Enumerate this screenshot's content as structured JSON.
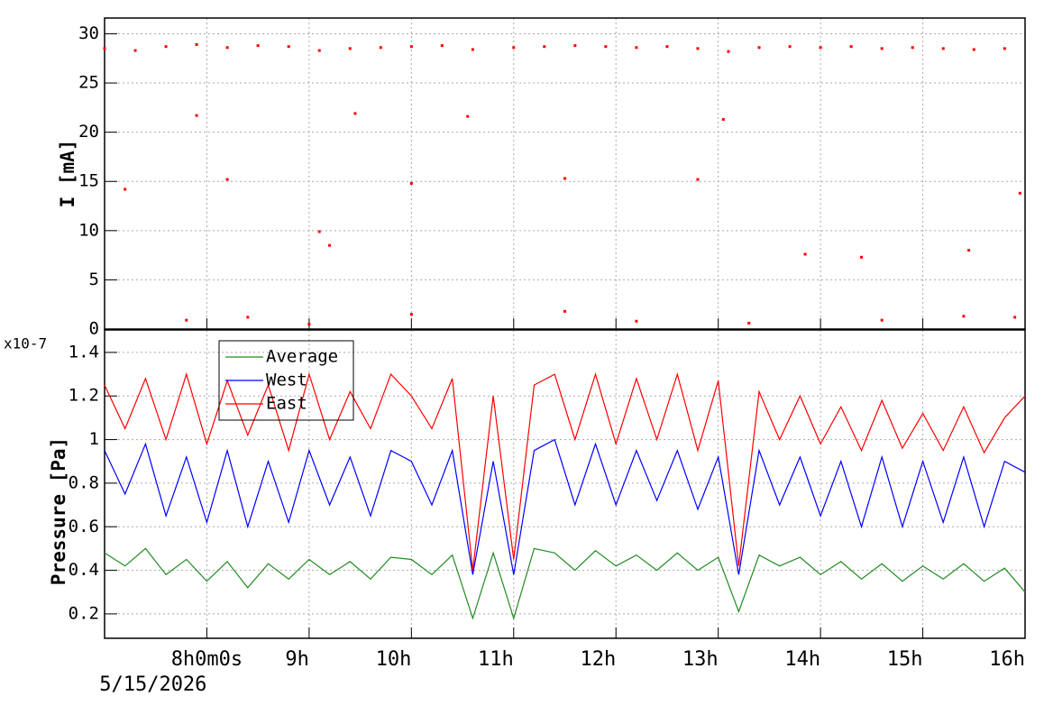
{
  "chart_data": [
    {
      "type": "scatter",
      "y_label": "I [mA]",
      "color": "#ff0000",
      "xlim": [
        7,
        16
      ],
      "xticks": [
        8,
        9,
        10,
        11,
        12,
        13,
        14,
        15,
        16
      ],
      "ylim": [
        0,
        31.6
      ],
      "yticks": [
        0,
        5,
        10,
        15,
        20,
        25,
        30
      ],
      "grid": true,
      "x": [
        7.0,
        7.3,
        7.6,
        7.9,
        8.2,
        8.5,
        8.8,
        9.1,
        9.4,
        9.7,
        10.0,
        10.3,
        10.6,
        11.0,
        11.3,
        11.6,
        11.9,
        12.2,
        12.5,
        12.8,
        13.1,
        13.4,
        13.7,
        14.0,
        14.3,
        14.6,
        14.9,
        15.2,
        15.5,
        15.8,
        7.2,
        7.9,
        8.2,
        9.1,
        9.2,
        9.45,
        10.0,
        10.55,
        11.5,
        12.8,
        13.05,
        13.85,
        14.4,
        15.45,
        15.95,
        7.8,
        8.4,
        9.0,
        10.0,
        11.5,
        12.2,
        13.3,
        14.6,
        15.4,
        15.9
      ],
      "values": [
        28.5,
        28.3,
        28.7,
        28.9,
        28.6,
        28.8,
        28.7,
        28.3,
        28.5,
        28.6,
        28.7,
        28.8,
        28.4,
        28.6,
        28.7,
        28.8,
        28.7,
        28.6,
        28.7,
        28.5,
        28.2,
        28.6,
        28.7,
        28.6,
        28.7,
        28.5,
        28.6,
        28.5,
        28.4,
        28.5,
        14.2,
        21.7,
        15.2,
        9.9,
        8.5,
        21.9,
        14.8,
        21.6,
        15.3,
        15.2,
        21.3,
        7.6,
        7.3,
        8,
        13.8,
        0.9,
        1.2,
        0.5,
        1.5,
        1.8,
        0.8,
        0.6,
        0.9,
        1.3,
        1.2
      ]
    },
    {
      "type": "line",
      "y_label": "Pressure [Pa]",
      "y_multiplier": "x10-7",
      "x_date_label": "5/15/2026",
      "xlim": [
        7,
        16
      ],
      "xticks": [
        {
          "value": 8,
          "label": "8h0m0s"
        },
        {
          "value": 9,
          "label": "9h"
        },
        {
          "value": 10,
          "label": "10h"
        },
        {
          "value": 11,
          "label": "11h"
        },
        {
          "value": 12,
          "label": "12h"
        },
        {
          "value": 13,
          "label": "13h"
        },
        {
          "value": 14,
          "label": "14h"
        },
        {
          "value": 15,
          "label": "15h"
        },
        {
          "value": 16,
          "label": "16h"
        }
      ],
      "ylim": [
        0.088,
        1.503
      ],
      "yticks": [
        0.2,
        0.4,
        0.6,
        0.8,
        {
          "value": 1,
          "label": "1"
        },
        1.2,
        1.4
      ],
      "grid": true,
      "x": [
        7.0,
        7.2,
        7.4,
        7.6,
        7.8,
        8.0,
        8.2,
        8.4,
        8.6,
        8.8,
        9.0,
        9.2,
        9.4,
        9.6,
        9.8,
        10.0,
        10.2,
        10.4,
        10.6,
        10.8,
        11.0,
        11.2,
        11.4,
        11.6,
        11.8,
        12.0,
        12.2,
        12.4,
        12.6,
        12.8,
        13.0,
        13.2,
        13.4,
        13.6,
        13.8,
        14.0,
        14.2,
        14.4,
        14.6,
        14.8,
        15.0,
        15.2,
        15.4,
        15.6,
        15.8,
        16.0
      ],
      "series": [
        {
          "name": "Average",
          "color": "#228b22",
          "values": [
            0.48,
            0.42,
            0.5,
            0.38,
            0.45,
            0.35,
            0.44,
            0.32,
            0.43,
            0.36,
            0.45,
            0.38,
            0.44,
            0.36,
            0.46,
            0.45,
            0.38,
            0.47,
            0.18,
            0.48,
            0.18,
            0.5,
            0.48,
            0.4,
            0.49,
            0.42,
            0.47,
            0.4,
            0.48,
            0.4,
            0.46,
            0.21,
            0.47,
            0.42,
            0.46,
            0.38,
            0.44,
            0.36,
            0.43,
            0.35,
            0.42,
            0.36,
            0.43,
            0.35,
            0.41,
            0.3
          ]
        },
        {
          "name": "West",
          "color": "#0000ff",
          "values": [
            0.95,
            0.75,
            0.98,
            0.65,
            0.92,
            0.62,
            0.95,
            0.6,
            0.9,
            0.62,
            0.95,
            0.7,
            0.92,
            0.65,
            0.95,
            0.9,
            0.7,
            0.95,
            0.38,
            0.9,
            0.38,
            0.95,
            1.0,
            0.7,
            0.98,
            0.7,
            0.95,
            0.72,
            0.95,
            0.68,
            0.92,
            0.38,
            0.95,
            0.7,
            0.92,
            0.65,
            0.9,
            0.6,
            0.92,
            0.6,
            0.9,
            0.62,
            0.92,
            0.6,
            0.9,
            0.85
          ]
        },
        {
          "name": "East",
          "color": "#ff0000",
          "values": [
            1.25,
            1.05,
            1.28,
            1.0,
            1.3,
            0.98,
            1.27,
            1.02,
            1.25,
            0.95,
            1.3,
            1.0,
            1.22,
            1.05,
            1.3,
            1.2,
            1.05,
            1.28,
            0.4,
            1.2,
            0.45,
            1.25,
            1.3,
            1.0,
            1.3,
            0.98,
            1.28,
            1.0,
            1.3,
            0.95,
            1.27,
            0.42,
            1.22,
            1.0,
            1.2,
            0.98,
            1.15,
            0.95,
            1.18,
            0.96,
            1.12,
            0.95,
            1.15,
            0.94,
            1.1,
            1.2
          ]
        }
      ]
    }
  ]
}
